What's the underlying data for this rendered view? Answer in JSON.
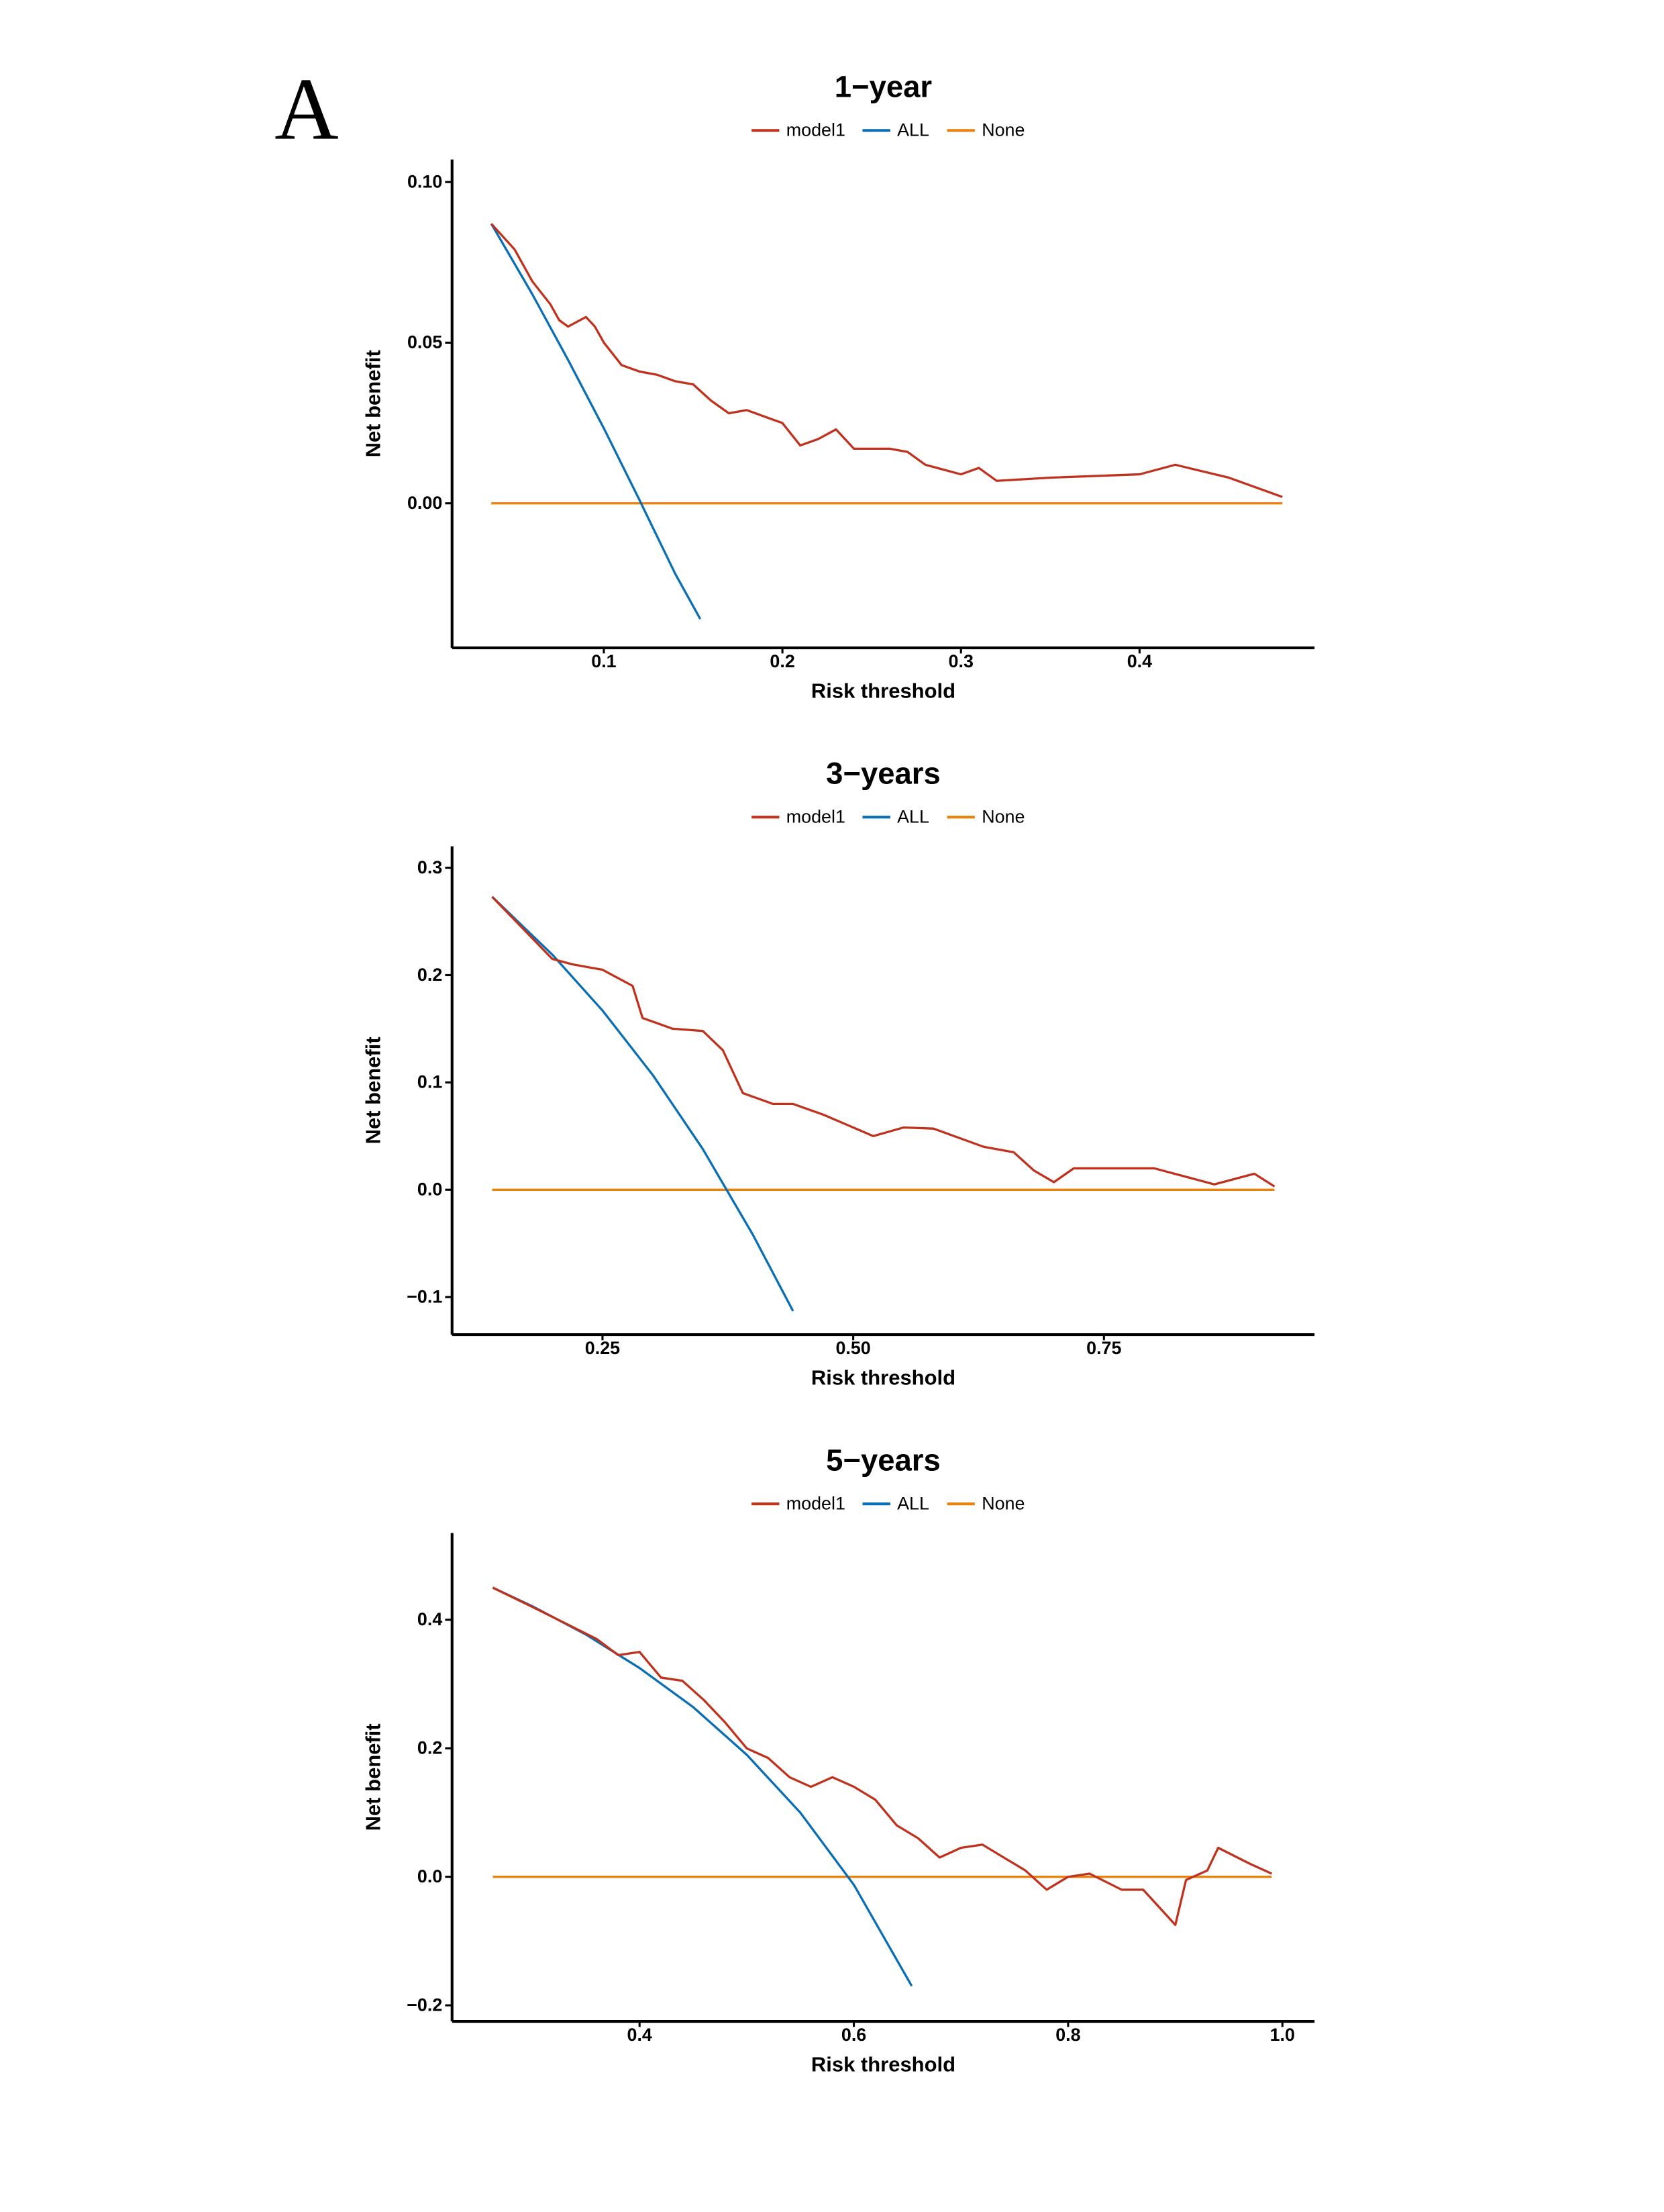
{
  "panel_label": "A",
  "colors": {
    "model1": "#c0321e",
    "ALL": "#0a6eb4",
    "None": "#e8820e"
  },
  "chart_data": [
    {
      "type": "line",
      "title": "1−year",
      "xlabel": "Risk threshold",
      "ylabel": "Net benefit",
      "xlim": [
        0.015,
        0.498
      ],
      "ylim": [
        -0.045,
        0.107
      ],
      "xticks": [
        0.1,
        0.2,
        0.3,
        0.4
      ],
      "xtick_labels": [
        "0.1",
        "0.2",
        "0.3",
        "0.4"
      ],
      "yticks": [
        0.1,
        0.05,
        0.0
      ],
      "ytick_labels": [
        "0.10",
        "0.05",
        "0.00"
      ],
      "legend": [
        "model1",
        "ALL",
        "None"
      ],
      "legend_position": "top",
      "grid": false,
      "series": [
        {
          "name": "model1",
          "x": [
            0.037,
            0.05,
            0.06,
            0.07,
            0.075,
            0.08,
            0.09,
            0.095,
            0.1,
            0.11,
            0.12,
            0.13,
            0.14,
            0.15,
            0.16,
            0.17,
            0.18,
            0.19,
            0.2,
            0.21,
            0.22,
            0.23,
            0.24,
            0.26,
            0.27,
            0.28,
            0.3,
            0.31,
            0.32,
            0.35,
            0.4,
            0.42,
            0.45,
            0.48
          ],
          "y": [
            0.087,
            0.079,
            0.069,
            0.062,
            0.057,
            0.055,
            0.058,
            0.055,
            0.05,
            0.043,
            0.041,
            0.04,
            0.038,
            0.037,
            0.032,
            0.028,
            0.029,
            0.027,
            0.025,
            0.018,
            0.02,
            0.023,
            0.017,
            0.017,
            0.016,
            0.012,
            0.009,
            0.011,
            0.007,
            0.008,
            0.009,
            0.012,
            0.008,
            0.002
          ]
        },
        {
          "name": "ALL",
          "x": [
            0.037,
            0.06,
            0.08,
            0.1,
            0.12,
            0.14,
            0.154
          ],
          "y": [
            0.087,
            0.065,
            0.0446,
            0.0233,
            0.001,
            -0.022,
            -0.036
          ]
        },
        {
          "name": "None",
          "x": [
            0.037,
            0.48
          ],
          "y": [
            0,
            0
          ]
        }
      ]
    },
    {
      "type": "line",
      "title": "3−years",
      "xlabel": "Risk threshold",
      "ylabel": "Net benefit",
      "xlim": [
        0.1,
        0.96
      ],
      "ylim": [
        -0.135,
        0.32
      ],
      "xticks": [
        0.25,
        0.5,
        0.75
      ],
      "xtick_labels": [
        "0.25",
        "0.50",
        "0.75"
      ],
      "yticks": [
        0.3,
        0.2,
        0.1,
        0.0,
        -0.1
      ],
      "ytick_labels": [
        "0.3",
        "0.2",
        "0.1",
        "0.0",
        "−0.1"
      ],
      "legend": [
        "model1",
        "ALL",
        "None"
      ],
      "legend_position": "top",
      "grid": false,
      "series": [
        {
          "name": "model1",
          "x": [
            0.14,
            0.2,
            0.22,
            0.25,
            0.28,
            0.29,
            0.32,
            0.35,
            0.37,
            0.39,
            0.42,
            0.44,
            0.47,
            0.52,
            0.55,
            0.58,
            0.63,
            0.66,
            0.68,
            0.7,
            0.72,
            0.75,
            0.8,
            0.84,
            0.86,
            0.9,
            0.92
          ],
          "y": [
            0.273,
            0.215,
            0.21,
            0.205,
            0.19,
            0.16,
            0.15,
            0.148,
            0.13,
            0.09,
            0.08,
            0.08,
            0.07,
            0.05,
            0.058,
            0.057,
            0.04,
            0.035,
            0.018,
            0.007,
            0.02,
            0.02,
            0.02,
            0.01,
            0.005,
            0.015,
            0.003
          ]
        },
        {
          "name": "ALL",
          "x": [
            0.14,
            0.2,
            0.25,
            0.3,
            0.35,
            0.4,
            0.44
          ],
          "y": [
            0.273,
            0.219,
            0.167,
            0.107,
            0.038,
            -0.042,
            -0.113
          ]
        },
        {
          "name": "None",
          "x": [
            0.14,
            0.92
          ],
          "y": [
            0,
            0
          ]
        }
      ]
    },
    {
      "type": "line",
      "title": "5−years",
      "xlabel": "Risk threshold",
      "ylabel": "Net benefit",
      "xlim": [
        0.225,
        1.03
      ],
      "ylim": [
        -0.225,
        0.535
      ],
      "xticks": [
        0.4,
        0.6,
        0.8,
        1.0
      ],
      "xtick_labels": [
        "0.4",
        "0.6",
        "0.8",
        "1.0"
      ],
      "yticks": [
        0.4,
        0.2,
        0.0,
        -0.2
      ],
      "ytick_labels": [
        "0.4",
        "0.2",
        "0.0",
        "−0.2"
      ],
      "legend": [
        "model1",
        "ALL",
        "None"
      ],
      "legend_position": "top",
      "grid": false,
      "series": [
        {
          "name": "model1",
          "x": [
            0.263,
            0.3,
            0.33,
            0.36,
            0.38,
            0.4,
            0.42,
            0.44,
            0.46,
            0.48,
            0.5,
            0.52,
            0.54,
            0.56,
            0.58,
            0.6,
            0.62,
            0.64,
            0.66,
            0.68,
            0.7,
            0.72,
            0.74,
            0.76,
            0.78,
            0.8,
            0.82,
            0.85,
            0.87,
            0.9,
            0.91,
            0.93,
            0.94,
            0.97,
            0.99
          ],
          "y": [
            0.45,
            0.42,
            0.395,
            0.37,
            0.345,
            0.35,
            0.31,
            0.305,
            0.275,
            0.24,
            0.2,
            0.185,
            0.155,
            0.14,
            0.155,
            0.14,
            0.12,
            0.08,
            0.06,
            0.03,
            0.045,
            0.05,
            0.03,
            0.01,
            -0.02,
            0.0,
            0.005,
            -0.02,
            -0.02,
            -0.075,
            -0.005,
            0.01,
            0.045,
            0.02,
            0.005
          ]
        },
        {
          "name": "ALL",
          "x": [
            0.263,
            0.3,
            0.35,
            0.4,
            0.45,
            0.5,
            0.55,
            0.6,
            0.654
          ],
          "y": [
            0.45,
            0.421,
            0.377,
            0.325,
            0.264,
            0.19,
            0.1,
            -0.0125,
            -0.17
          ]
        },
        {
          "name": "None",
          "x": [
            0.263,
            0.99
          ],
          "y": [
            0,
            0
          ]
        }
      ]
    }
  ]
}
